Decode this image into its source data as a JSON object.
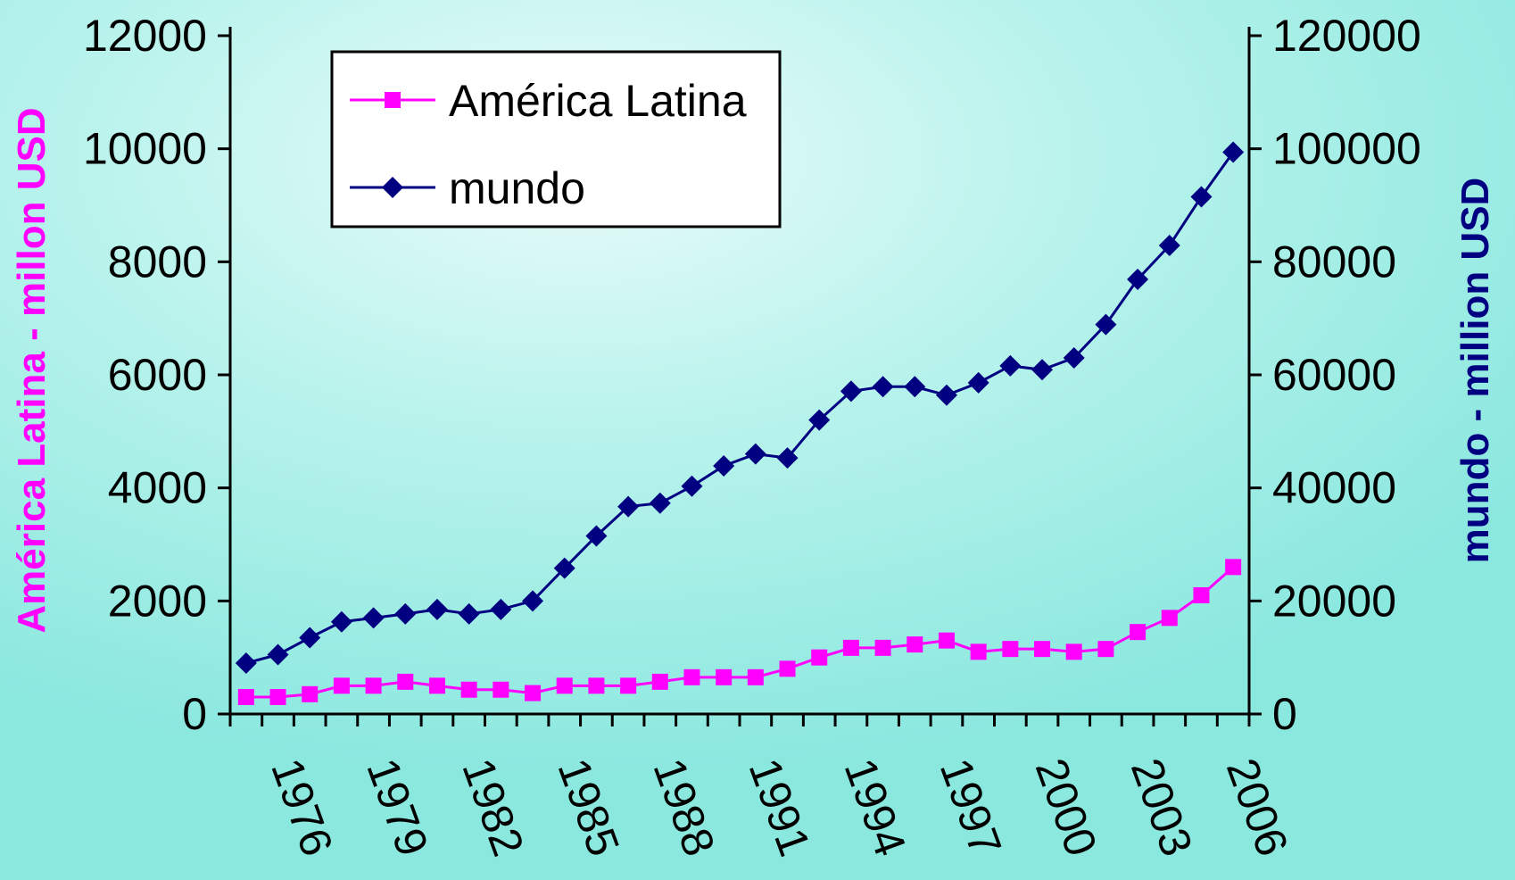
{
  "chart_data": {
    "type": "line",
    "title": "",
    "xlabel": "",
    "ylabel_left": "América Latina - millon USD",
    "ylabel_right": "mundo - million USD",
    "x": [
      1975,
      1976,
      1977,
      1978,
      1979,
      1980,
      1981,
      1982,
      1983,
      1984,
      1985,
      1986,
      1987,
      1988,
      1989,
      1990,
      1991,
      1992,
      1993,
      1994,
      1995,
      1996,
      1997,
      1998,
      1999,
      2000,
      2001,
      2002,
      2003,
      2004,
      2005,
      2006
    ],
    "x_tick_labels": [
      "1976",
      "1979",
      "1982",
      "1985",
      "1988",
      "1991",
      "1994",
      "1997",
      "2000",
      "2003",
      "2006"
    ],
    "y_left_ticks": [
      "0",
      "2000",
      "4000",
      "6000",
      "8000",
      "10000",
      "12000"
    ],
    "y_right_ticks": [
      "0",
      "20000",
      "40000",
      "60000",
      "80000",
      "100000",
      "120000"
    ],
    "ylim_left": [
      0,
      12000
    ],
    "ylim_right": [
      0,
      120000
    ],
    "legend_position": "top-left",
    "grid": false,
    "series": [
      {
        "name": "América Latina",
        "axis": "left",
        "color": "#ff00ff",
        "marker": "square",
        "values": [
          300,
          300,
          350,
          500,
          500,
          570,
          500,
          430,
          430,
          370,
          500,
          500,
          500,
          570,
          650,
          650,
          650,
          800,
          1000,
          1170,
          1170,
          1230,
          1300,
          1100,
          1150,
          1150,
          1100,
          1150,
          1450,
          1700,
          2100,
          2600
        ]
      },
      {
        "name": "mundo",
        "axis": "right",
        "color": "#000080",
        "marker": "diamond",
        "values": [
          9000,
          10500,
          13500,
          16300,
          17000,
          17700,
          18500,
          17700,
          18500,
          20000,
          25800,
          31500,
          36700,
          37300,
          40300,
          43900,
          46000,
          45300,
          52000,
          57100,
          57900,
          57900,
          56400,
          58600,
          61600,
          60900,
          63000,
          68900,
          76900,
          82900,
          91500,
          99400
        ]
      }
    ]
  }
}
